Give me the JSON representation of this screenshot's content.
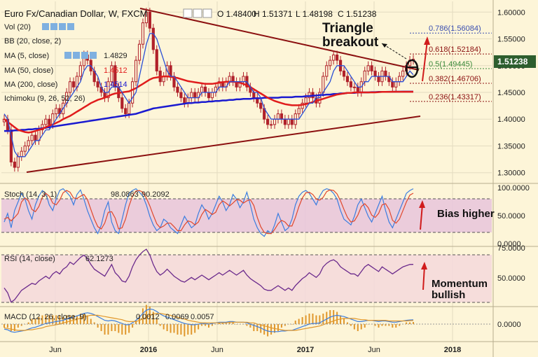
{
  "header": {
    "title": "Euro Fx/Canadian Dollar, W, FXCM",
    "ohlc": [
      "O 1.48400",
      "H 1.51371",
      "L 1.48198",
      "C 1.51238"
    ]
  },
  "indicators": {
    "vol": "Vol (20)",
    "bb": "BB (20, close, 2)",
    "ma5": "MA (5, close)",
    "ma5_val": "1.4829",
    "ma50": "MA (50, close)",
    "ma50_val": "1.4512",
    "ma200": "MA (200, close)",
    "ma200_val": "1.4514",
    "ichimoku": "Ichimoku (9, 26, 52, 26)"
  },
  "panels": {
    "stoch": {
      "label": "Stoch (14, 3, 1)",
      "v1": "98.0863",
      "v2": "90.2092"
    },
    "rsi": {
      "label": "RSI (14, close)",
      "v1": "62.1273"
    },
    "macd": {
      "label": "MACD (12, 26, close, 9)",
      "v1": "0.0012",
      "v2": "0.0069",
      "v3": "0.0057"
    }
  },
  "annotations": {
    "breakout_line1": "Triangle",
    "breakout_line2": "breakout",
    "bias": "Bias higher",
    "momentum_line1": "Momentum",
    "momentum_line2": "bullish"
  },
  "colors": {
    "background": "#fdf5d8",
    "candle": "#b0212a",
    "ma5": "#2a4fd6",
    "ma50": "#e01c1c",
    "ma200": "#1a1ad0",
    "trendline": "#8b0f0f",
    "stoch_band": "#e8c4dc",
    "rsi_band": "#f4d8dc",
    "indicator_k": "#3b7de0",
    "indicator_d": "#e0472c",
    "rsi_line": "#6b2a8c",
    "macd_hist": "#e0972c",
    "arrow": "#d01c1c",
    "price_tag": "#2d5e2e"
  },
  "chart_data": {
    "type": "candlestick",
    "title": "Euro Fx/Canadian Dollar, W, FXCM",
    "x_ticks": [
      "Jun",
      "2016",
      "Jun",
      "2017",
      "Jun",
      "2018"
    ],
    "y_ticks": [
      "1.60000",
      "1.55000",
      "1.50000",
      "1.45000",
      "1.40000",
      "1.35000",
      "1.30000"
    ],
    "ylim": [
      1.28,
      1.62
    ],
    "last_price": "1.51238",
    "fibonacci": [
      {
        "label": "0.786(1.56084)",
        "value": 1.56084
      },
      {
        "label": "0.618(1.52184)",
        "value": 1.52184
      },
      {
        "label": "0.5(1.49445)",
        "value": 1.49445
      },
      {
        "label": "0.382(1.46706)",
        "value": 1.46706
      },
      {
        "label": "0.236(1.43317)",
        "value": 1.43317
      }
    ],
    "close": [
      1.4,
      1.38,
      1.32,
      1.31,
      1.33,
      1.34,
      1.35,
      1.36,
      1.37,
      1.36,
      1.38,
      1.39,
      1.4,
      1.39,
      1.41,
      1.42,
      1.41,
      1.43,
      1.45,
      1.47,
      1.46,
      1.48,
      1.5,
      1.52,
      1.51,
      1.49,
      1.47,
      1.46,
      1.45,
      1.44,
      1.47,
      1.5,
      1.46,
      1.44,
      1.42,
      1.41,
      1.43,
      1.47,
      1.51,
      1.54,
      1.58,
      1.6,
      1.57,
      1.53,
      1.49,
      1.47,
      1.48,
      1.5,
      1.48,
      1.46,
      1.45,
      1.44,
      1.43,
      1.44,
      1.45,
      1.44,
      1.45,
      1.46,
      1.45,
      1.44,
      1.45,
      1.46,
      1.47,
      1.46,
      1.47,
      1.48,
      1.47,
      1.46,
      1.47,
      1.48,
      1.46,
      1.45,
      1.44,
      1.43,
      1.42,
      1.4,
      1.39,
      1.39,
      1.4,
      1.41,
      1.4,
      1.39,
      1.4,
      1.39,
      1.41,
      1.42,
      1.43,
      1.44,
      1.45,
      1.44,
      1.43,
      1.45,
      1.48,
      1.5,
      1.51,
      1.52,
      1.51,
      1.49,
      1.48,
      1.47,
      1.46,
      1.46,
      1.45,
      1.47,
      1.49,
      1.5,
      1.49,
      1.48,
      1.47,
      1.49,
      1.48,
      1.47,
      1.46,
      1.47,
      1.48,
      1.49,
      1.5,
      1.51,
      1.512
    ],
    "ma5": [
      1.41,
      1.4,
      1.37,
      1.34,
      1.33,
      1.33,
      1.33,
      1.34,
      1.35,
      1.36,
      1.36,
      1.37,
      1.38,
      1.38,
      1.39,
      1.4,
      1.41,
      1.42,
      1.43,
      1.44,
      1.45,
      1.46,
      1.47,
      1.49,
      1.5,
      1.5,
      1.49,
      1.48,
      1.46,
      1.45,
      1.45,
      1.46,
      1.46,
      1.46,
      1.45,
      1.44,
      1.43,
      1.44,
      1.45,
      1.48,
      1.51,
      1.54,
      1.56,
      1.56,
      1.55,
      1.53,
      1.51,
      1.49,
      1.48,
      1.48,
      1.47,
      1.46,
      1.45,
      1.44,
      1.44,
      1.44,
      1.44,
      1.45,
      1.45,
      1.45,
      1.45,
      1.45,
      1.46,
      1.46,
      1.46,
      1.47,
      1.47,
      1.47,
      1.47,
      1.47,
      1.47,
      1.46,
      1.45,
      1.45,
      1.44,
      1.42,
      1.41,
      1.4,
      1.4,
      1.4,
      1.4,
      1.4,
      1.4,
      1.4,
      1.4,
      1.4,
      1.41,
      1.42,
      1.43,
      1.43,
      1.44,
      1.44,
      1.45,
      1.46,
      1.47,
      1.49,
      1.5,
      1.5,
      1.5,
      1.49,
      1.48,
      1.47,
      1.46,
      1.46,
      1.47,
      1.47,
      1.48,
      1.48,
      1.48,
      1.48,
      1.48,
      1.48,
      1.47,
      1.47,
      1.47,
      1.47,
      1.48,
      1.49,
      1.4829
    ],
    "ma50": [
      1.4,
      1.395,
      1.39,
      1.385,
      1.38,
      1.378,
      1.376,
      1.375,
      1.376,
      1.378,
      1.38,
      1.382,
      1.385,
      1.388,
      1.39,
      1.393,
      1.396,
      1.4,
      1.403,
      1.406,
      1.41,
      1.414,
      1.418,
      1.422,
      1.426,
      1.43,
      1.433,
      1.436,
      1.438,
      1.44,
      1.443,
      1.446,
      1.448,
      1.449,
      1.45,
      1.451,
      1.452,
      1.455,
      1.458,
      1.462,
      1.466,
      1.47,
      1.474,
      1.477,
      1.478,
      1.479,
      1.48,
      1.48,
      1.479,
      1.478,
      1.477,
      1.475,
      1.473,
      1.471,
      1.47,
      1.469,
      1.468,
      1.467,
      1.466,
      1.466,
      1.466,
      1.467,
      1.468,
      1.469,
      1.47,
      1.47,
      1.47,
      1.469,
      1.468,
      1.466,
      1.463,
      1.46,
      1.456,
      1.452,
      1.448,
      1.444,
      1.44,
      1.437,
      1.434,
      1.432,
      1.43,
      1.428,
      1.427,
      1.426,
      1.426,
      1.426,
      1.427,
      1.428,
      1.43,
      1.432,
      1.434,
      1.436,
      1.438,
      1.44,
      1.442,
      1.444,
      1.446,
      1.447,
      1.448,
      1.449,
      1.449,
      1.45,
      1.45,
      1.45,
      1.45,
      1.45,
      1.45,
      1.45,
      1.4505,
      1.451,
      1.451,
      1.451,
      1.4512,
      1.4512,
      1.4512,
      1.4512,
      1.4512,
      1.4512,
      1.4512
    ],
    "ma200": [
      1.378,
      1.378,
      1.378,
      1.379,
      1.379,
      1.38,
      1.38,
      1.381,
      1.381,
      1.382,
      1.382,
      1.383,
      1.384,
      1.385,
      1.386,
      1.387,
      1.388,
      1.389,
      1.39,
      1.391,
      1.392,
      1.393,
      1.394,
      1.395,
      1.396,
      1.397,
      1.398,
      1.399,
      1.4,
      1.401,
      1.402,
      1.403,
      1.404,
      1.405,
      1.406,
      1.407,
      1.408,
      1.409,
      1.41,
      1.412,
      1.414,
      1.416,
      1.418,
      1.42,
      1.421,
      1.422,
      1.423,
      1.424,
      1.425,
      1.426,
      1.427,
      1.428,
      1.429,
      1.43,
      1.43,
      1.431,
      1.431,
      1.432,
      1.432,
      1.433,
      1.433,
      1.434,
      1.434,
      1.435,
      1.435,
      1.436,
      1.436,
      1.437,
      1.437,
      1.438,
      1.438,
      1.438,
      1.439,
      1.439,
      1.439,
      1.44,
      1.44,
      1.44,
      1.44,
      1.44,
      1.441,
      1.441,
      1.441,
      1.441,
      1.442,
      1.442,
      1.442,
      1.443,
      1.443,
      1.444,
      1.444,
      1.445,
      1.445,
      1.446,
      1.446,
      1.447,
      1.447,
      1.448,
      1.448,
      1.449,
      1.449,
      1.449,
      1.45,
      1.45,
      1.45,
      1.45,
      1.4505,
      1.4505,
      1.451,
      1.451,
      1.451,
      1.4512,
      1.4512,
      1.4513,
      1.4513,
      1.4514,
      1.4514,
      1.4514,
      1.4514
    ],
    "stoch_k": [
      40,
      55,
      30,
      60,
      75,
      90,
      80,
      60,
      45,
      70,
      85,
      95,
      90,
      70,
      60,
      80,
      95,
      98,
      92,
      85,
      70,
      88,
      96,
      80,
      60,
      45,
      30,
      20,
      35,
      60,
      75,
      40,
      25,
      20,
      45,
      70,
      90,
      95,
      98,
      92,
      85,
      70,
      50,
      35,
      25,
      30,
      45,
      40,
      30,
      25,
      20,
      35,
      50,
      40,
      30,
      35,
      55,
      70,
      60,
      45,
      55,
      70,
      85,
      75,
      60,
      70,
      88,
      80,
      65,
      75,
      92,
      70,
      45,
      30,
      20,
      15,
      25,
      20,
      35,
      55,
      40,
      25,
      30,
      45,
      70,
      85,
      92,
      95,
      90,
      80,
      70,
      85,
      95,
      98,
      96,
      90,
      80,
      60,
      45,
      40,
      35,
      50,
      70,
      80,
      65,
      50,
      40,
      55,
      70,
      85,
      60,
      40,
      30,
      45,
      60,
      75,
      90,
      95,
      98.1
    ],
    "stoch_d": [
      45,
      48,
      42,
      48,
      55,
      75,
      82,
      77,
      62,
      58,
      67,
      83,
      90,
      85,
      73,
      70,
      78,
      91,
      95,
      92,
      82,
      81,
      85,
      88,
      79,
      62,
      45,
      32,
      28,
      38,
      57,
      58,
      47,
      28,
      30,
      45,
      68,
      85,
      94,
      95,
      92,
      82,
      68,
      52,
      37,
      30,
      33,
      38,
      38,
      32,
      25,
      25,
      35,
      42,
      40,
      35,
      40,
      53,
      62,
      58,
      53,
      57,
      70,
      77,
      73,
      68,
      73,
      79,
      78,
      73,
      77,
      79,
      69,
      48,
      32,
      22,
      20,
      20,
      27,
      37,
      43,
      40,
      33,
      33,
      48,
      67,
      82,
      91,
      92,
      88,
      80,
      78,
      83,
      93,
      96,
      95,
      89,
      77,
      62,
      48,
      40,
      42,
      52,
      67,
      72,
      65,
      52,
      48,
      55,
      70,
      72,
      62,
      43,
      38,
      45,
      60,
      75,
      87,
      90.2
    ],
    "rsi": [
      42,
      38,
      30,
      32,
      36,
      40,
      42,
      44,
      46,
      45,
      48,
      50,
      52,
      50,
      54,
      56,
      54,
      58,
      60,
      64,
      62,
      65,
      68,
      70,
      67,
      62,
      58,
      56,
      54,
      52,
      57,
      62,
      55,
      52,
      48,
      47,
      52,
      60,
      66,
      70,
      73,
      75,
      70,
      62,
      56,
      53,
      55,
      58,
      55,
      52,
      50,
      48,
      47,
      49,
      51,
      49,
      51,
      53,
      51,
      49,
      51,
      53,
      55,
      53,
      55,
      57,
      55,
      53,
      55,
      57,
      53,
      50,
      48,
      46,
      44,
      41,
      40,
      40,
      42,
      44,
      42,
      40,
      42,
      40,
      44,
      47,
      50,
      52,
      55,
      53,
      51,
      54,
      60,
      63,
      65,
      66,
      64,
      60,
      58,
      56,
      54,
      54,
      52,
      56,
      60,
      62,
      60,
      58,
      56,
      60,
      58,
      56,
      54,
      56,
      58,
      60,
      61,
      62,
      62.1
    ],
    "macd": [
      -0.008,
      -0.009,
      -0.012,
      -0.013,
      -0.012,
      -0.011,
      -0.01,
      -0.008,
      -0.006,
      -0.005,
      -0.003,
      -0.001,
      0.001,
      0.002,
      0.003,
      0.004,
      0.005,
      0.006,
      0.008,
      0.01,
      0.011,
      0.013,
      0.015,
      0.017,
      0.018,
      0.017,
      0.015,
      0.012,
      0.009,
      0.006,
      0.005,
      0.006,
      0.005,
      0.003,
      0.001,
      -0.001,
      -0.001,
      0.002,
      0.006,
      0.011,
      0.017,
      0.022,
      0.024,
      0.023,
      0.02,
      0.016,
      0.013,
      0.011,
      0.009,
      0.007,
      0.005,
      0.003,
      0.001,
      0.0,
      -0.001,
      -0.001,
      0.0,
      0.001,
      0.001,
      0.0,
      0.001,
      0.002,
      0.003,
      0.003,
      0.003,
      0.004,
      0.004,
      0.003,
      0.003,
      0.003,
      0.002,
      0.0,
      -0.002,
      -0.004,
      -0.006,
      -0.009,
      -0.011,
      -0.012,
      -0.012,
      -0.012,
      -0.011,
      -0.011,
      -0.01,
      -0.01,
      -0.008,
      -0.006,
      -0.004,
      -0.002,
      0.0,
      0.001,
      0.001,
      0.002,
      0.005,
      0.008,
      0.011,
      0.013,
      0.014,
      0.013,
      0.012,
      0.01,
      0.008,
      0.006,
      0.004,
      0.004,
      0.005,
      0.006,
      0.006,
      0.005,
      0.004,
      0.005,
      0.005,
      0.004,
      0.003,
      0.003,
      0.004,
      0.005,
      0.006,
      0.0065,
      0.0069
    ],
    "macd_signal": [
      -0.006,
      -0.007,
      -0.008,
      -0.009,
      -0.01,
      -0.01,
      -0.01,
      -0.009,
      -0.009,
      -0.008,
      -0.007,
      -0.006,
      -0.004,
      -0.003,
      -0.002,
      -0.001,
      0.0,
      0.002,
      0.003,
      0.005,
      0.006,
      0.008,
      0.009,
      0.011,
      0.013,
      0.014,
      0.014,
      0.014,
      0.013,
      0.012,
      0.011,
      0.01,
      0.009,
      0.008,
      0.007,
      0.005,
      0.004,
      0.004,
      0.004,
      0.006,
      0.008,
      0.011,
      0.014,
      0.016,
      0.017,
      0.017,
      0.016,
      0.015,
      0.014,
      0.012,
      0.011,
      0.009,
      0.008,
      0.006,
      0.005,
      0.004,
      0.003,
      0.002,
      0.002,
      0.002,
      0.002,
      0.002,
      0.002,
      0.002,
      0.002,
      0.003,
      0.003,
      0.003,
      0.003,
      0.003,
      0.003,
      0.002,
      0.002,
      0.0,
      -0.001,
      -0.003,
      -0.004,
      -0.006,
      -0.007,
      -0.008,
      -0.009,
      -0.01,
      -0.01,
      -0.01,
      -0.01,
      -0.009,
      -0.008,
      -0.007,
      -0.006,
      -0.005,
      -0.004,
      -0.003,
      -0.001,
      0.001,
      0.003,
      0.005,
      0.007,
      0.008,
      0.009,
      0.009,
      0.009,
      0.009,
      0.008,
      0.007,
      0.007,
      0.006,
      0.006,
      0.006,
      0.006,
      0.006,
      0.006,
      0.005,
      0.005,
      0.005,
      0.005,
      0.005,
      0.005,
      0.0055,
      0.0057
    ]
  }
}
